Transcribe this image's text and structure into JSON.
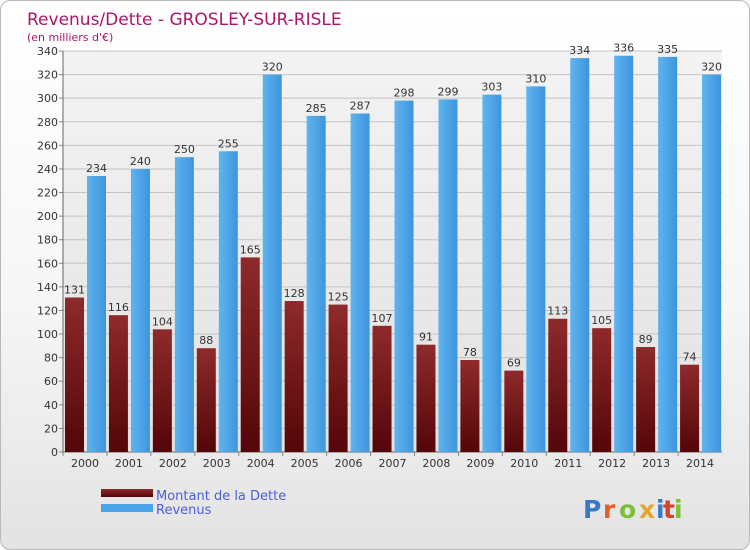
{
  "chart_data": {
    "type": "bar",
    "title": "Revenus/Dette - GROSLEY-SUR-RISLE",
    "subtitle": "(en milliers d'€)",
    "categories": [
      "2000",
      "2001",
      "2002",
      "2003",
      "2004",
      "2005",
      "2006",
      "2007",
      "2008",
      "2009",
      "2010",
      "2011",
      "2012",
      "2013",
      "2014"
    ],
    "series": [
      {
        "name": "Montant de la Dette",
        "color": "#7a1f22",
        "values": [
          131,
          116,
          104,
          88,
          165,
          128,
          125,
          107,
          91,
          78,
          69,
          113,
          105,
          89,
          74
        ]
      },
      {
        "name": "Revenus",
        "color": "#4aa3e6",
        "values": [
          234,
          240,
          250,
          255,
          320,
          285,
          287,
          298,
          299,
          303,
          310,
          334,
          336,
          335,
          320
        ]
      }
    ],
    "ylim": [
      0,
      340
    ],
    "ytick_step": 20,
    "grid": true,
    "legend_position": "bottom-left"
  },
  "logo": {
    "text": "Proxiti",
    "letter_colors": [
      "#3a78c8",
      "#e0602a",
      "#7bbf3a",
      "#e0a82e",
      "#3a78c8",
      "#d4432c",
      "#7bbf3a"
    ]
  }
}
